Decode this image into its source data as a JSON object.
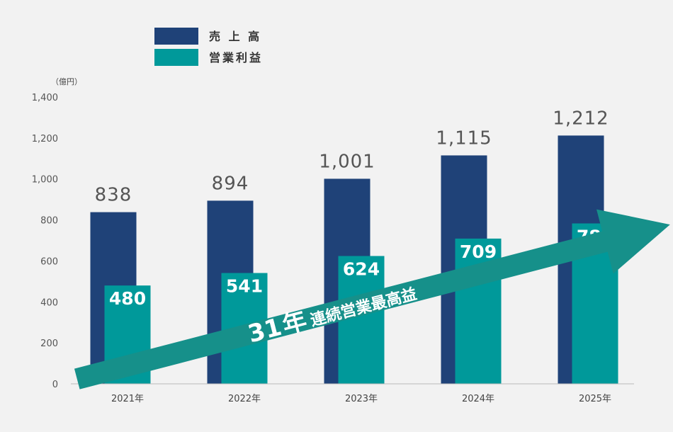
{
  "chart_data": {
    "type": "bar",
    "unit_label": "（億円）",
    "categories": [
      "2021年",
      "2022年",
      "2023年",
      "2024年",
      "2025年"
    ],
    "series": [
      {
        "name": "売 上 高",
        "color": "#1f4278",
        "values": [
          838,
          894,
          1001,
          1115,
          1212
        ],
        "labels": [
          "838",
          "894",
          "1,001",
          "1,115",
          "1,212"
        ]
      },
      {
        "name": "営業利益",
        "color": "#00999a",
        "values": [
          480,
          541,
          624,
          709,
          783
        ],
        "labels": [
          "480",
          "541",
          "624",
          "709",
          "783"
        ]
      }
    ],
    "ylim": [
      0,
      1400
    ],
    "yticks": [
      0,
      200,
      400,
      600,
      800,
      1000,
      1200,
      1400
    ],
    "ytick_labels": [
      "0",
      "200",
      "400",
      "600",
      "800",
      "1,000",
      "1,200",
      "1,400"
    ],
    "legend_position": "top-left",
    "grid": false
  },
  "annotation": {
    "number": "31",
    "year_char": "年",
    "rest": "連続営業最高益",
    "color": "#16908a"
  }
}
